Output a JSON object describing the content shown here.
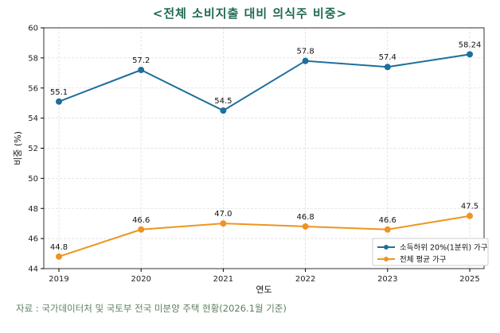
{
  "chart_data": {
    "type": "line",
    "title": "<전체 소비지출 대비 의식주 비중>",
    "xlabel": "연도",
    "ylabel": "비중 (%)",
    "categories": [
      "2019",
      "2020",
      "2021",
      "2022",
      "2023",
      "2025"
    ],
    "ylim": [
      44,
      60
    ],
    "yticks": [
      "44",
      "46",
      "48",
      "50",
      "52",
      "54",
      "56",
      "58",
      "60"
    ],
    "grid": true,
    "legend_position": "bottom-right",
    "series": [
      {
        "name": "소득하위 20%(1분위) 가구",
        "color": "#1f6e9c",
        "values": [
          55.1,
          57.2,
          54.5,
          57.8,
          57.4,
          58.24
        ],
        "labels": [
          "55.1",
          "57.2",
          "54.5",
          "57.8",
          "57.4",
          "58.24"
        ]
      },
      {
        "name": "전체 평균 가구",
        "color": "#ef9420",
        "values": [
          44.8,
          46.6,
          47.0,
          46.8,
          46.6,
          47.5
        ],
        "labels": [
          "44.8",
          "46.6",
          "47.0",
          "46.8",
          "46.6",
          "47.5"
        ]
      }
    ],
    "source": "자료 : 국가데이터처 및 국토부 전국 미분양 주택 현황(2026.1월 기준)"
  }
}
